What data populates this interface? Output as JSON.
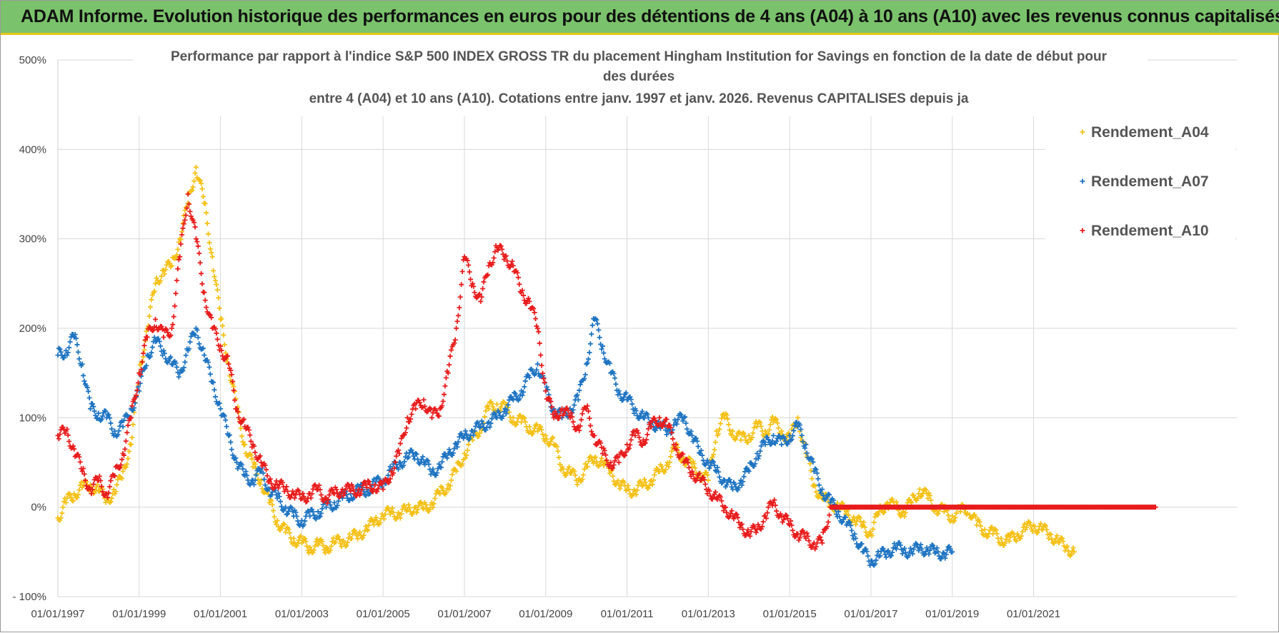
{
  "banner": {
    "title": "ADAM Informe. Evolution historique des performances en euros pour des détentions de 4 ans (A04) à 10 ans (A10) avec les revenus connus capitalisés"
  },
  "colors": {
    "banner_bg": "#7ac26b",
    "banner_border": "#e8c619",
    "a04": "#f5c118",
    "a07": "#1f74c2",
    "a10": "#e81d1d"
  },
  "chart_data": {
    "type": "scatter",
    "title_lines": [
      "Performance par rapport à l'indice S&P 500 INDEX GROSS TR  du placement Hingham Institution for Savings en fonction de la date de début pour",
      "des durées",
      "entre 4 (A04) et 10 ans (A10).  Cotations entre janv. 1997 et janv. 2026. Revenus CAPITALISES depuis ja"
    ],
    "xlabel": "",
    "ylabel": "",
    "xlim": [
      1997.0,
      2026.0
    ],
    "ylim": [
      -100,
      500
    ],
    "y_ticks": [
      {
        "value": -100,
        "label": "- 100%"
      },
      {
        "value": 0,
        "label": "0%"
      },
      {
        "value": 100,
        "label": "100%"
      },
      {
        "value": 200,
        "label": "200%"
      },
      {
        "value": 300,
        "label": "300%"
      },
      {
        "value": 400,
        "label": "400%"
      },
      {
        "value": 500,
        "label": "500%"
      }
    ],
    "x_ticks": [
      {
        "value": 1997.0,
        "label": "01/01/1997"
      },
      {
        "value": 1999.0,
        "label": "01/01/1999"
      },
      {
        "value": 2001.0,
        "label": "01/01/2001"
      },
      {
        "value": 2003.0,
        "label": "01/01/2003"
      },
      {
        "value": 2005.0,
        "label": "01/01/2005"
      },
      {
        "value": 2007.0,
        "label": "01/01/2007"
      },
      {
        "value": 2009.0,
        "label": "01/01/2009"
      },
      {
        "value": 2011.0,
        "label": "01/01/2011"
      },
      {
        "value": 2013.0,
        "label": "01/01/2013"
      },
      {
        "value": 2015.0,
        "label": "01/01/2015"
      },
      {
        "value": 2017.0,
        "label": "01/01/2017"
      },
      {
        "value": 2019.0,
        "label": "01/01/2019"
      },
      {
        "value": 2021.0,
        "label": "01/01/2021"
      }
    ],
    "grid": true,
    "legend_position": "top-right",
    "marker": "+",
    "series": [
      {
        "name": "Rendement_A04",
        "color_key": "a04",
        "x": [
          1997.0,
          1997.2,
          1997.4,
          1997.6,
          1997.8,
          1998.0,
          1998.2,
          1998.4,
          1998.6,
          1998.8,
          1999.0,
          1999.2,
          1999.4,
          1999.6,
          1999.8,
          2000.0,
          2000.2,
          2000.4,
          2000.6,
          2000.8,
          2001.0,
          2001.2,
          2001.4,
          2001.6,
          2001.8,
          2002.0,
          2002.2,
          2002.4,
          2002.6,
          2002.8,
          2003.0,
          2003.2,
          2003.4,
          2003.6,
          2003.8,
          2004.0,
          2004.2,
          2004.4,
          2004.6,
          2004.8,
          2005.0,
          2005.2,
          2005.4,
          2005.6,
          2005.8,
          2006.0,
          2006.2,
          2006.4,
          2006.6,
          2006.8,
          2007.0,
          2007.2,
          2007.4,
          2007.6,
          2007.8,
          2008.0,
          2008.2,
          2008.4,
          2008.6,
          2008.8,
          2009.0,
          2009.2,
          2009.4,
          2009.6,
          2009.8,
          2010.0,
          2010.2,
          2010.4,
          2010.6,
          2010.8,
          2011.0,
          2011.2,
          2011.4,
          2011.6,
          2011.8,
          2012.0,
          2012.2,
          2012.4,
          2012.6,
          2012.8,
          2013.0,
          2013.2,
          2013.4,
          2013.6,
          2013.8,
          2014.0,
          2014.2,
          2014.4,
          2014.6,
          2014.8,
          2015.0,
          2015.2,
          2015.4,
          2015.6,
          2015.8,
          2016.0,
          2016.2,
          2016.4,
          2016.6,
          2016.8,
          2017.0,
          2017.2,
          2017.4,
          2017.6,
          2017.8,
          2018.0,
          2018.2,
          2018.4,
          2018.6,
          2018.8,
          2019.0,
          2019.2,
          2019.4,
          2019.6,
          2019.8,
          2020.0,
          2020.2,
          2020.4,
          2020.6,
          2020.8,
          2021.0,
          2021.2,
          2021.4,
          2021.6,
          2021.8,
          2022.0
        ],
        "y": [
          -12,
          5,
          15,
          22,
          25,
          18,
          10,
          15,
          40,
          70,
          150,
          200,
          250,
          265,
          270,
          300,
          340,
          380,
          340,
          280,
          210,
          160,
          110,
          70,
          45,
          30,
          5,
          -15,
          -28,
          -35,
          -40,
          -45,
          -42,
          -45,
          -40,
          -38,
          -35,
          -30,
          -25,
          -15,
          -10,
          -5,
          -8,
          -3,
          0,
          -2,
          5,
          15,
          25,
          40,
          60,
          75,
          90,
          110,
          115,
          110,
          100,
          95,
          90,
          85,
          80,
          70,
          45,
          38,
          30,
          45,
          55,
          50,
          40,
          25,
          20,
          18,
          25,
          30,
          40,
          50,
          65,
          55,
          45,
          38,
          30,
          85,
          100,
          85,
          75,
          80,
          90,
          85,
          95,
          85,
          75,
          100,
          60,
          25,
          10,
          5,
          0,
          -5,
          -15,
          -20,
          -30,
          -5,
          5,
          0,
          -5,
          5,
          20,
          10,
          0,
          -5,
          -10,
          -5,
          0,
          -20,
          -25,
          -30,
          -35,
          -38,
          -30,
          -25,
          -20,
          -25,
          -30,
          -38,
          -45,
          -50
        ]
      },
      {
        "name": "Rendement_A07",
        "color_key": "a07",
        "x": [
          1997.0,
          1997.2,
          1997.4,
          1997.6,
          1997.8,
          1998.0,
          1998.2,
          1998.4,
          1998.6,
          1998.8,
          1999.0,
          1999.2,
          1999.4,
          1999.6,
          1999.8,
          2000.0,
          2000.2,
          2000.4,
          2000.6,
          2000.8,
          2001.0,
          2001.2,
          2001.4,
          2001.6,
          2001.8,
          2002.0,
          2002.2,
          2002.4,
          2002.6,
          2002.8,
          2003.0,
          2003.2,
          2003.4,
          2003.6,
          2003.8,
          2004.0,
          2004.2,
          2004.4,
          2004.6,
          2004.8,
          2005.0,
          2005.2,
          2005.4,
          2005.6,
          2005.8,
          2006.0,
          2006.2,
          2006.4,
          2006.6,
          2006.8,
          2007.0,
          2007.2,
          2007.4,
          2007.6,
          2007.8,
          2008.0,
          2008.2,
          2008.4,
          2008.6,
          2008.8,
          2009.0,
          2009.2,
          2009.4,
          2009.6,
          2009.8,
          2010.0,
          2010.2,
          2010.4,
          2010.6,
          2010.8,
          2011.0,
          2011.2,
          2011.4,
          2011.6,
          2011.8,
          2012.0,
          2012.2,
          2012.4,
          2012.6,
          2012.8,
          2013.0,
          2013.2,
          2013.4,
          2013.6,
          2013.8,
          2014.0,
          2014.2,
          2014.4,
          2014.6,
          2014.8,
          2015.0,
          2015.2,
          2015.4,
          2015.6,
          2015.8,
          2016.0,
          2016.2,
          2016.4,
          2016.6,
          2016.8,
          2017.0,
          2017.2,
          2017.4,
          2017.6,
          2017.8,
          2018.0,
          2018.2,
          2018.4,
          2018.6,
          2018.8,
          2019.0
        ],
        "y": [
          170,
          175,
          190,
          160,
          110,
          105,
          100,
          85,
          90,
          110,
          130,
          170,
          185,
          175,
          160,
          150,
          175,
          200,
          170,
          140,
          110,
          80,
          50,
          35,
          30,
          40,
          20,
          10,
          0,
          -10,
          -15,
          -10,
          -5,
          0,
          5,
          10,
          15,
          18,
          20,
          25,
          30,
          40,
          50,
          55,
          60,
          50,
          40,
          45,
          60,
          70,
          80,
          85,
          90,
          95,
          100,
          110,
          120,
          130,
          145,
          160,
          130,
          110,
          100,
          110,
          120,
          160,
          210,
          180,
          150,
          130,
          120,
          110,
          100,
          95,
          90,
          85,
          95,
          100,
          80,
          60,
          50,
          40,
          30,
          20,
          30,
          40,
          60,
          70,
          80,
          70,
          80,
          90,
          70,
          40,
          20,
          5,
          -5,
          -20,
          -30,
          -50,
          -60,
          -55,
          -50,
          -45,
          -48,
          -50,
          -45,
          -48,
          -50,
          -52,
          -50
        ]
      },
      {
        "name": "Rendement_A10",
        "color_key": "a10",
        "x": [
          1997.0,
          1997.2,
          1997.4,
          1997.6,
          1997.8,
          1998.0,
          1998.2,
          1998.4,
          1998.6,
          1998.8,
          1999.0,
          1999.2,
          1999.4,
          1999.6,
          1999.8,
          2000.0,
          2000.2,
          2000.4,
          2000.6,
          2000.8,
          2001.0,
          2001.2,
          2001.4,
          2001.6,
          2001.8,
          2002.0,
          2002.2,
          2002.4,
          2002.6,
          2002.8,
          2003.0,
          2003.2,
          2003.4,
          2003.6,
          2003.8,
          2004.0,
          2004.2,
          2004.4,
          2004.6,
          2004.8,
          2005.0,
          2005.2,
          2005.4,
          2005.6,
          2005.8,
          2006.0,
          2006.2,
          2006.4,
          2006.6,
          2006.8,
          2007.0,
          2007.2,
          2007.4,
          2007.6,
          2007.8,
          2008.0,
          2008.2,
          2008.4,
          2008.6,
          2008.8,
          2009.0,
          2009.2,
          2009.4,
          2009.6,
          2009.8,
          2010.0,
          2010.2,
          2010.4,
          2010.6,
          2010.8,
          2011.0,
          2011.2,
          2011.4,
          2011.6,
          2011.8,
          2012.0,
          2012.2,
          2012.4,
          2012.6,
          2012.8,
          2013.0,
          2013.2,
          2013.4,
          2013.6,
          2013.8,
          2014.0,
          2014.2,
          2014.4,
          2014.6,
          2014.8,
          2015.0,
          2015.2,
          2015.4,
          2015.6,
          2015.8,
          2016.0,
          2016.2,
          2016.4,
          2016.6,
          2016.8,
          2017.0,
          2017.2,
          2017.4,
          2017.6,
          2017.8,
          2018.0,
          2018.2,
          2018.4,
          2018.6,
          2018.8,
          2019.0,
          2019.2,
          2019.4,
          2019.6,
          2019.8,
          2020.0,
          2020.2,
          2020.4,
          2020.6,
          2020.8,
          2021.0,
          2021.2,
          2021.4,
          2021.6,
          2021.8,
          2022.0,
          2022.2,
          2022.4,
          2022.6,
          2022.8,
          2023.0,
          2023.2,
          2023.4,
          2023.6,
          2023.8,
          2024.0
        ],
        "y": [
          80,
          85,
          65,
          40,
          20,
          30,
          15,
          35,
          60,
          100,
          150,
          190,
          210,
          190,
          200,
          280,
          350,
          300,
          240,
          200,
          180,
          160,
          110,
          90,
          70,
          50,
          30,
          25,
          20,
          15,
          10,
          15,
          20,
          10,
          15,
          20,
          18,
          20,
          22,
          25,
          20,
          40,
          60,
          100,
          110,
          120,
          100,
          110,
          150,
          200,
          280,
          250,
          230,
          270,
          290,
          280,
          270,
          240,
          230,
          200,
          130,
          100,
          110,
          100,
          90,
          110,
          80,
          60,
          50,
          50,
          70,
          80,
          75,
          90,
          100,
          90,
          70,
          50,
          40,
          30,
          20,
          10,
          0,
          -10,
          -20,
          -30,
          -25,
          -10,
          5,
          -10,
          -20,
          -30,
          -35,
          -40,
          -40,
          0,
          0,
          0,
          0,
          0,
          0,
          0,
          0,
          0,
          0,
          0,
          0,
          0,
          0,
          0,
          0,
          0,
          0,
          0,
          0,
          0,
          0,
          0,
          0,
          0,
          0,
          0,
          0,
          0,
          0,
          0,
          0,
          0,
          0,
          0,
          0,
          0,
          0,
          0,
          0,
          0
        ]
      }
    ]
  }
}
